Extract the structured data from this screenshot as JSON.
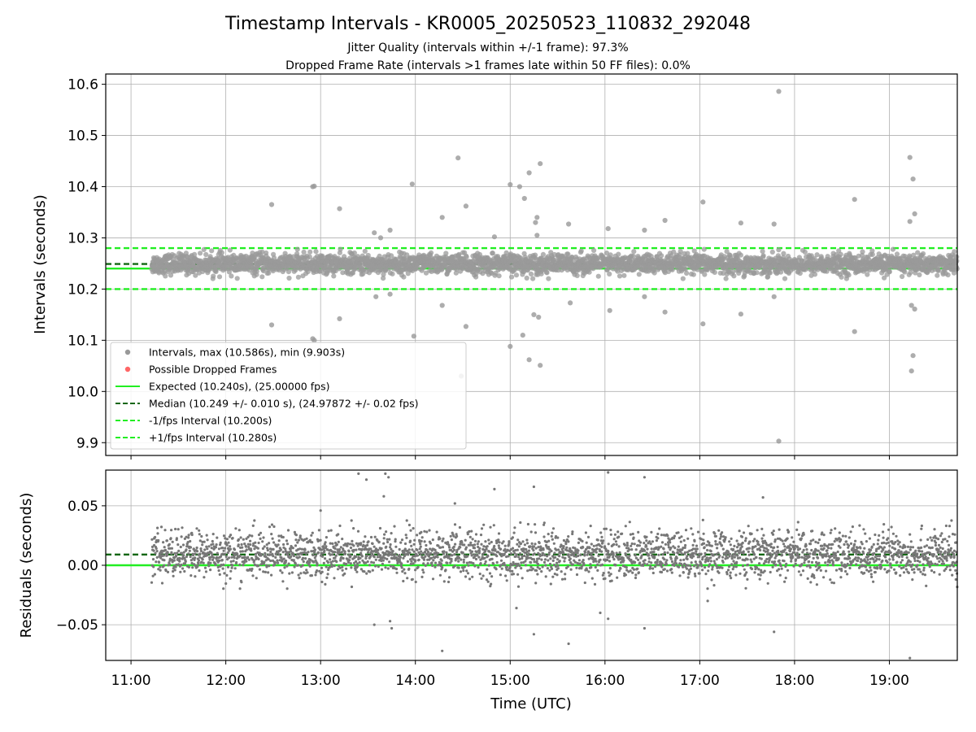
{
  "chart_data": [
    {
      "type": "scatter",
      "title": "Timestamp Intervals - KR0005_20250523_110832_292048",
      "subtitle_lines": [
        "Jitter Quality (intervals within +/-1 frame): 97.3%",
        "Dropped Frame Rate (intervals >1 frames late within 50 FF files): 0.0%"
      ],
      "ylabel": "Intervals (seconds)",
      "ylim": [
        9.875,
        10.62
      ],
      "yticks": [
        9.9,
        10.0,
        10.1,
        10.2,
        10.3,
        10.4,
        10.5,
        10.6
      ],
      "ytick_labels": [
        "9.9",
        "10.0",
        "10.1",
        "10.2",
        "10.3",
        "10.4",
        "10.5",
        "10.6"
      ],
      "grid": true,
      "legend_position": "lower-left",
      "series": [
        {
          "name": "Intervals, max (10.586s), min (9.903s)",
          "kind": "scatter",
          "color": "#999999",
          "band": {
            "x_start": "11:13",
            "x_end": "19:43",
            "center": 10.249,
            "spread": 0.013
          },
          "outliers": [
            [
              "12:29",
              10.365
            ],
            [
              "12:29",
              10.13
            ],
            [
              "12:55",
              10.4
            ],
            [
              "12:56",
              10.401
            ],
            [
              "12:55",
              10.103
            ],
            [
              "12:56",
              10.1
            ],
            [
              "13:12",
              10.357
            ],
            [
              "13:12",
              10.142
            ],
            [
              "13:34",
              10.31
            ],
            [
              "13:35",
              10.185
            ],
            [
              "13:38",
              10.3
            ],
            [
              "13:44",
              10.315
            ],
            [
              "13:44",
              10.19
            ],
            [
              "13:58",
              10.405
            ],
            [
              "13:59",
              10.108
            ],
            [
              "14:17",
              10.34
            ],
            [
              "14:17",
              10.168
            ],
            [
              "14:27",
              10.456
            ],
            [
              "14:29",
              10.03
            ],
            [
              "14:32",
              10.362
            ],
            [
              "14:32",
              10.127
            ],
            [
              "14:50",
              10.302
            ],
            [
              "15:00",
              10.404
            ],
            [
              "15:00",
              10.088
            ],
            [
              "15:06",
              10.4
            ],
            [
              "15:09",
              10.377
            ],
            [
              "15:08",
              10.11
            ],
            [
              "15:12",
              10.427
            ],
            [
              "15:12",
              10.062
            ],
            [
              "15:15",
              10.15
            ],
            [
              "15:16",
              10.33
            ],
            [
              "15:17",
              10.305
            ],
            [
              "15:17",
              10.34
            ],
            [
              "15:18",
              10.145
            ],
            [
              "15:19",
              10.445
            ],
            [
              "15:19",
              10.051
            ],
            [
              "15:37",
              10.327
            ],
            [
              "15:38",
              10.173
            ],
            [
              "16:02",
              10.318
            ],
            [
              "16:03",
              10.158
            ],
            [
              "16:25",
              10.315
            ],
            [
              "16:25",
              10.185
            ],
            [
              "16:38",
              10.334
            ],
            [
              "16:38",
              10.155
            ],
            [
              "17:02",
              10.37
            ],
            [
              "17:02",
              10.132
            ],
            [
              "17:26",
              10.329
            ],
            [
              "17:26",
              10.151
            ],
            [
              "17:47",
              10.327
            ],
            [
              "17:47",
              10.185
            ],
            [
              "17:50",
              10.586
            ],
            [
              "17:50",
              9.903
            ],
            [
              "18:38",
              10.375
            ],
            [
              "18:38",
              10.117
            ],
            [
              "19:13",
              10.457
            ],
            [
              "19:13",
              10.332
            ],
            [
              "19:14",
              10.168
            ],
            [
              "19:14",
              10.04
            ],
            [
              "19:15",
              10.415
            ],
            [
              "19:15",
              10.07
            ],
            [
              "19:16",
              10.347
            ],
            [
              "19:16",
              10.161
            ]
          ]
        },
        {
          "name": "Possible Dropped Frames",
          "kind": "scatter",
          "color": "#ff6666",
          "points": []
        },
        {
          "name": "Expected (10.240s), (25.00000 fps)",
          "kind": "hline",
          "y": 10.24,
          "color": "#22ee22",
          "style": "solid"
        },
        {
          "name": "Median (10.249 +/- 0.010 s), (24.97872 +/- 0.02 fps)",
          "kind": "hline",
          "y": 10.249,
          "color": "#116611",
          "style": "dashed"
        },
        {
          "name": "-1/fps Interval (10.200s)",
          "kind": "hline",
          "y": 10.2,
          "color": "#22ee22",
          "style": "dashed"
        },
        {
          "name": "+1/fps Interval (10.280s)",
          "kind": "hline",
          "y": 10.28,
          "color": "#22ee22",
          "style": "dashed"
        }
      ]
    },
    {
      "type": "scatter",
      "ylabel": "Residuals (seconds)",
      "xlabel": "Time (UTC)",
      "ylim": [
        -0.08,
        0.08
      ],
      "yticks": [
        -0.05,
        0.0,
        0.05
      ],
      "ytick_labels": [
        "−0.05",
        "0.00",
        "0.05"
      ],
      "xlim": [
        "10:44",
        "19:43"
      ],
      "xticks": [
        "11:00",
        "12:00",
        "13:00",
        "14:00",
        "15:00",
        "16:00",
        "17:00",
        "18:00",
        "19:00"
      ],
      "grid": true,
      "series": [
        {
          "kind": "scatter",
          "color": "#777777",
          "band": {
            "x_start": "11:13",
            "x_end": "19:43",
            "center": 0.009,
            "spread": 0.013
          },
          "outliers": [
            [
              "13:00",
              0.046
            ],
            [
              "13:24",
              0.077
            ],
            [
              "13:29",
              0.072
            ],
            [
              "13:34",
              -0.05
            ],
            [
              "13:40",
              0.058
            ],
            [
              "13:41",
              0.077
            ],
            [
              "13:43",
              0.074
            ],
            [
              "13:44",
              -0.047
            ],
            [
              "13:45",
              -0.053
            ],
            [
              "14:17",
              -0.072
            ],
            [
              "14:25",
              0.052
            ],
            [
              "14:50",
              0.064
            ],
            [
              "15:04",
              -0.036
            ],
            [
              "15:15",
              0.066
            ],
            [
              "15:15",
              -0.058
            ],
            [
              "15:37",
              -0.066
            ],
            [
              "15:57",
              -0.04
            ],
            [
              "16:02",
              0.078
            ],
            [
              "16:02",
              -0.045
            ],
            [
              "16:25",
              0.074
            ],
            [
              "16:25",
              -0.053
            ],
            [
              "17:02",
              0.038
            ],
            [
              "17:05",
              -0.03
            ],
            [
              "17:40",
              0.057
            ],
            [
              "17:47",
              -0.056
            ],
            [
              "19:13",
              -0.078
            ]
          ]
        },
        {
          "kind": "hline",
          "y": 0.0,
          "color": "#22ee22",
          "style": "solid"
        },
        {
          "kind": "hline",
          "y": 0.009,
          "color": "#116611",
          "style": "dashed"
        }
      ]
    }
  ]
}
